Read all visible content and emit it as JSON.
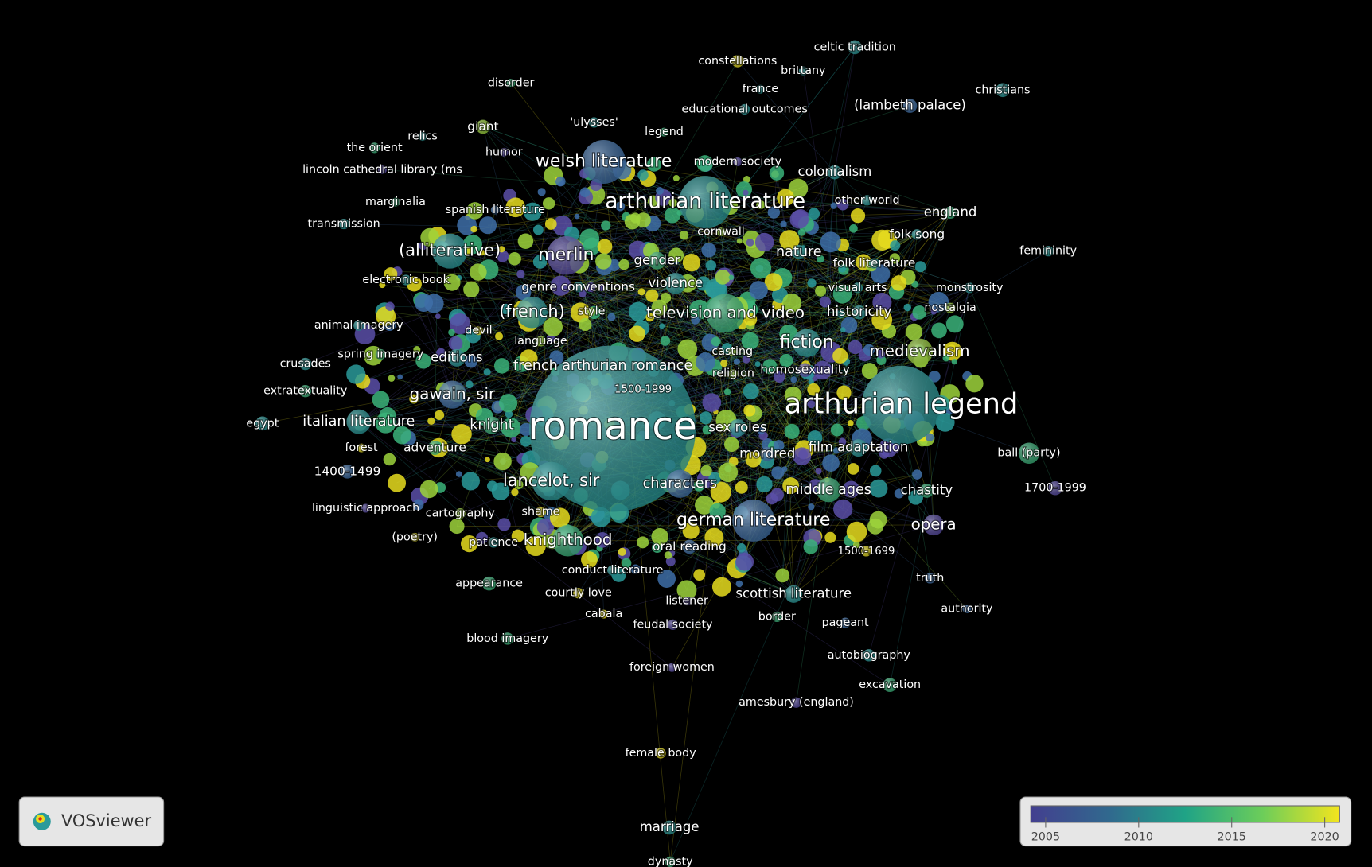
{
  "app": {
    "name": "VOSviewer"
  },
  "legend": {
    "range": [
      2004.2,
      2020.8
    ],
    "ticks": [
      2005,
      2010,
      2015,
      2020
    ]
  },
  "nodes": [
    {
      "label": "romance"
    },
    {
      "label": "arthurian legend"
    },
    {
      "label": "arthurian literature"
    },
    {
      "label": "welsh literature"
    },
    {
      "label": "merlin"
    },
    {
      "label": "(alliterative)"
    },
    {
      "label": "(french)"
    },
    {
      "label": "television and video"
    },
    {
      "label": "fiction"
    },
    {
      "label": "medievalism"
    },
    {
      "label": "gawain, sir"
    },
    {
      "label": "italian literature"
    },
    {
      "label": "lancelot, sir"
    },
    {
      "label": "german literature"
    },
    {
      "label": "knighthood"
    },
    {
      "label": "characters"
    },
    {
      "label": "middle ages"
    },
    {
      "label": "opera"
    },
    {
      "label": "scottish literature"
    },
    {
      "label": "french arthurian romance"
    },
    {
      "label": "sex roles"
    },
    {
      "label": "mordred"
    },
    {
      "label": "film adaptation"
    },
    {
      "label": "knight"
    },
    {
      "label": "adventure"
    },
    {
      "label": "nature"
    },
    {
      "label": "gender"
    },
    {
      "label": "violence"
    },
    {
      "label": "genre conventions"
    },
    {
      "label": "style"
    },
    {
      "label": "colonialism"
    },
    {
      "label": "england"
    },
    {
      "label": "folk song"
    },
    {
      "label": "folk literature"
    },
    {
      "label": "visual arts"
    },
    {
      "label": "monstrosity"
    },
    {
      "label": "nostalgia"
    },
    {
      "label": "historicity"
    },
    {
      "label": "homosexuality"
    },
    {
      "label": "casting"
    },
    {
      "label": "religion"
    },
    {
      "label": "1500-1999"
    },
    {
      "label": "chastity"
    },
    {
      "label": "1700-1999"
    },
    {
      "label": "ball (party)"
    },
    {
      "label": "femininity"
    },
    {
      "label": "(lambeth palace)"
    },
    {
      "label": "christians"
    },
    {
      "label": "celtic tradition"
    },
    {
      "label": "brittany"
    },
    {
      "label": "constellations"
    },
    {
      "label": "france"
    },
    {
      "label": "educational outcomes"
    },
    {
      "label": "legend"
    },
    {
      "label": "modern society"
    },
    {
      "label": "'ulysses'"
    },
    {
      "label": "disorder"
    },
    {
      "label": "giant"
    },
    {
      "label": "relics"
    },
    {
      "label": "humor"
    },
    {
      "label": "the orient"
    },
    {
      "label": "lincoln cathedral library (ms"
    },
    {
      "label": "marginalia"
    },
    {
      "label": "spanish literature"
    },
    {
      "label": "transmission"
    },
    {
      "label": "cornwall"
    },
    {
      "label": "other world"
    },
    {
      "label": "electronic book"
    },
    {
      "label": "animal imagery"
    },
    {
      "label": "devil"
    },
    {
      "label": "language"
    },
    {
      "label": "spring imagery"
    },
    {
      "label": "editions"
    },
    {
      "label": "crusades"
    },
    {
      "label": "extratextuality"
    },
    {
      "label": "egypt"
    },
    {
      "label": "forest"
    },
    {
      "label": "1400-1499"
    },
    {
      "label": "linguistic approach"
    },
    {
      "label": "cartography"
    },
    {
      "label": "shame"
    },
    {
      "label": "(poetry)"
    },
    {
      "label": "patience"
    },
    {
      "label": "oral reading"
    },
    {
      "label": "1500-1699"
    },
    {
      "label": "conduct literature"
    },
    {
      "label": "appearance"
    },
    {
      "label": "courtly love"
    },
    {
      "label": "listener"
    },
    {
      "label": "truth"
    },
    {
      "label": "cabala"
    },
    {
      "label": "feudal society"
    },
    {
      "label": "border"
    },
    {
      "label": "pageant"
    },
    {
      "label": "authority"
    },
    {
      "label": "blood imagery"
    },
    {
      "label": "autobiography"
    },
    {
      "label": "foreign women"
    },
    {
      "label": "excavation"
    },
    {
      "label": "amesbury (england)"
    },
    {
      "label": "female body"
    },
    {
      "label": "marriage"
    },
    {
      "label": "dynasty"
    }
  ]
}
